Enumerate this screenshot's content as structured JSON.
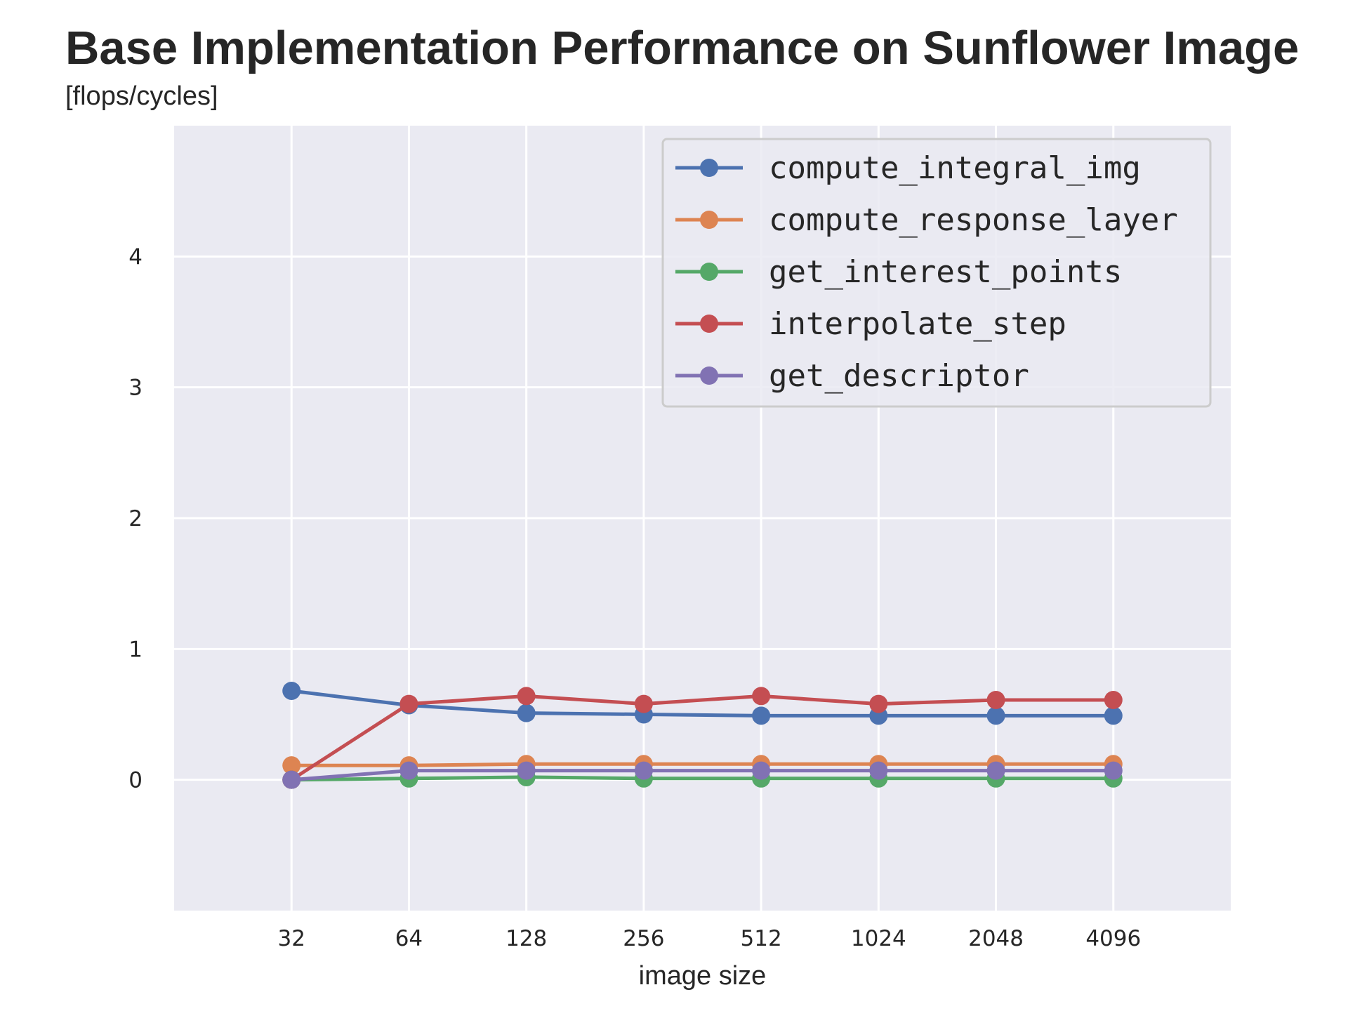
{
  "title": "Base Implementation Performance on Sunflower Image",
  "subtitle": "[flops/cycles]",
  "chart_data": {
    "type": "line",
    "title": "Base Implementation Performance on Sunflower Image",
    "ylabel": "[flops/cycles]",
    "xlabel": "image size",
    "categories": [
      "32",
      "64",
      "128",
      "256",
      "512",
      "1024",
      "2048",
      "4096"
    ],
    "x": [
      32,
      64,
      128,
      256,
      512,
      1024,
      2048,
      4096
    ],
    "xscale": "log2",
    "xlim": [
      16,
      8192
    ],
    "ylim": [
      -1,
      5
    ],
    "yticks": [
      0,
      1,
      2,
      3,
      4
    ],
    "grid": true,
    "legend_position": "top-right",
    "background": "#eaeaf2",
    "series": [
      {
        "name": "compute_integral_img",
        "color": "#4c72b0",
        "values": [
          0.68,
          0.57,
          0.51,
          0.5,
          0.49,
          0.49,
          0.49,
          0.49
        ]
      },
      {
        "name": "compute_response_layer",
        "color": "#dd8452",
        "values": [
          0.11,
          0.11,
          0.12,
          0.12,
          0.12,
          0.12,
          0.12,
          0.12
        ]
      },
      {
        "name": "get_interest_points",
        "color": "#55a868",
        "values": [
          0.0,
          0.01,
          0.02,
          0.01,
          0.01,
          0.01,
          0.01,
          0.01
        ]
      },
      {
        "name": "interpolate_step",
        "color": "#c44e52",
        "values": [
          0.0,
          0.58,
          0.64,
          0.58,
          0.64,
          0.58,
          0.61,
          0.61
        ]
      },
      {
        "name": "get_descriptor",
        "color": "#8172b3",
        "values": [
          0.0,
          0.07,
          0.07,
          0.07,
          0.07,
          0.07,
          0.07,
          0.07
        ]
      }
    ]
  }
}
